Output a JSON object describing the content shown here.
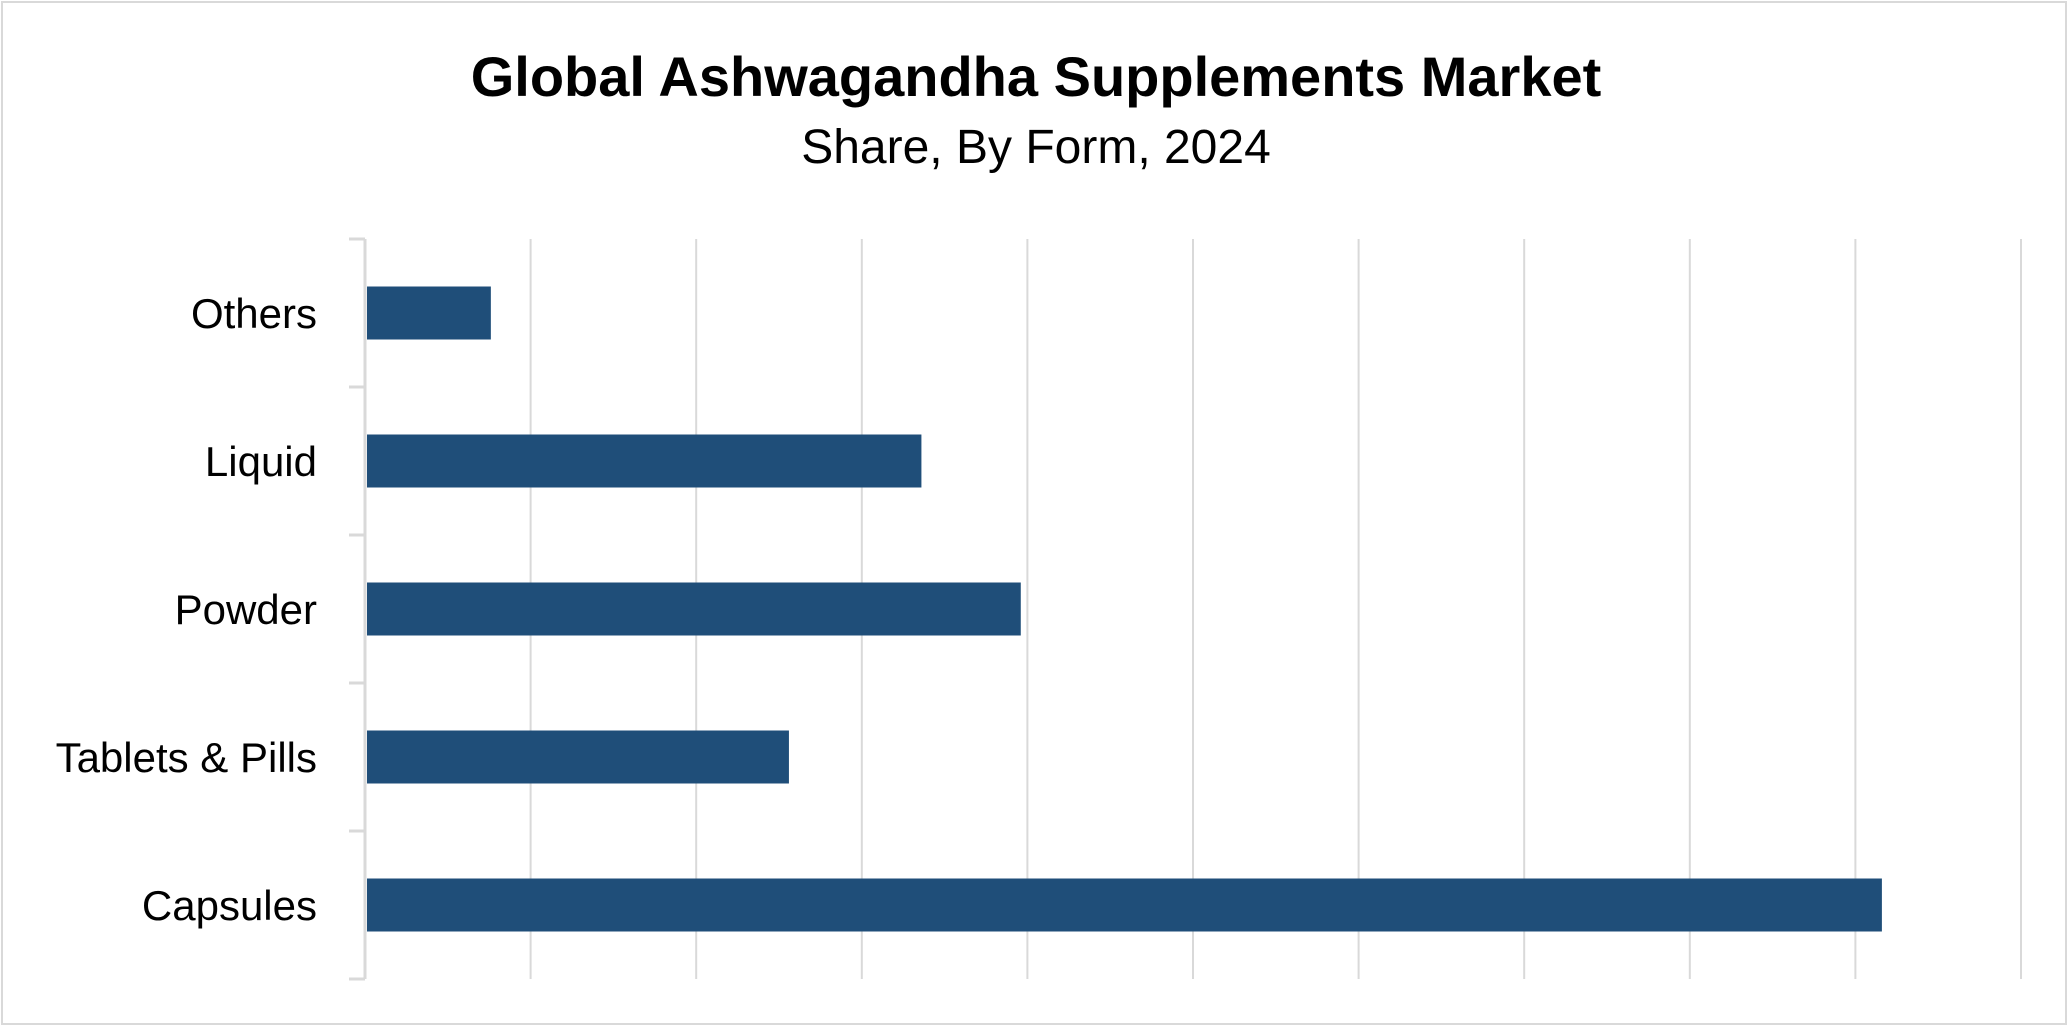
{
  "chart_data": {
    "type": "bar",
    "orientation": "horizontal",
    "title": "Global Ashwagandha Supplements Market",
    "subtitle": "Share, By Form, 2024",
    "categories": [
      "Others",
      "Liquid",
      "Powder",
      "Tablets & Pills",
      "Capsules"
    ],
    "values": [
      3.8,
      16.8,
      19.8,
      12.8,
      45.8
    ],
    "xlim": [
      0,
      50
    ],
    "x_gridline_step": 5,
    "x_tick_labels_shown": false,
    "grid": true,
    "legend": "none",
    "xlabel": "",
    "ylabel": "",
    "bar_color": "#1f4e79",
    "gridline_color": "#d9d9d9"
  }
}
